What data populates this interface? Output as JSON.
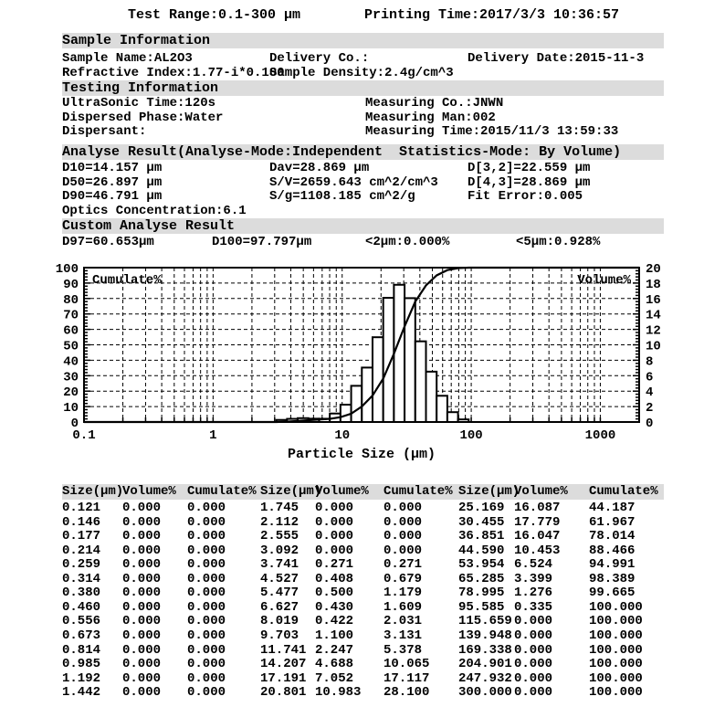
{
  "header": {
    "test_range": "Test Range:0.1-300 μm",
    "printing_time": "Printing Time:2017/3/3 10:36:57"
  },
  "sections": {
    "sample": {
      "title": "Sample Information",
      "rows": [
        [
          "Sample Name:AL2O3",
          "Delivery Co.:",
          "Delivery Date:2015-11-3"
        ],
        [
          "Refractive Index:1.77-i*0.100",
          "Sample Density:2.4g/cm^3"
        ]
      ]
    },
    "testing": {
      "title": "Testing Information",
      "rows": [
        [
          "UltraSonic Time:120s",
          "Measuring Co.:JNWN"
        ],
        [
          "Dispersed Phase:Water",
          "Measuring Man:002"
        ],
        [
          "Dispersant:",
          "Measuring Time:2015/11/3 13:59:33"
        ]
      ]
    },
    "analyse": {
      "title": "Analyse Result(Analyse-Mode:Independent  Statistics-Mode: By Volume)",
      "rows": [
        [
          "D10=14.157 μm",
          "Dav=28.869 μm",
          "D[3,2]=22.559 μm"
        ],
        [
          "D50=26.897 μm",
          "S/V=2659.643 cm^2/cm^3",
          "D[4,3]=28.869 μm"
        ],
        [
          "D90=46.791 μm",
          "S/g=1108.185 cm^2/g",
          "Fit Error:0.005"
        ],
        [
          "Optics Concentration:6.1"
        ]
      ]
    },
    "custom": {
      "title": "Custom Analyse Result",
      "rows": [
        [
          "D97=60.653μm",
          "D100=97.797μm",
          "<2μm:0.000%",
          "<5μm:0.928%"
        ]
      ]
    }
  },
  "chart_data": {
    "type": "bar",
    "title": "",
    "xlabel": "Particle Size (μm)",
    "x_scale": "log",
    "x_min": 0.1,
    "x_max": 2000,
    "x_tick_values": [
      0.1,
      1,
      10,
      100,
      1000
    ],
    "x_tick_labels": [
      "0.1",
      "1",
      "10",
      "100",
      "1000"
    ],
    "left_axis_label": "Cumulate%",
    "left_ylim": [
      0,
      100
    ],
    "left_tick_step": 10,
    "right_axis_label": "Volume%",
    "right_ylim": [
      0,
      20
    ],
    "right_tick_step": 2,
    "grid": "dashed",
    "sizes": [
      0.121,
      0.146,
      0.177,
      0.214,
      0.259,
      0.314,
      0.38,
      0.46,
      0.556,
      0.673,
      0.814,
      0.985,
      1.192,
      1.442,
      1.745,
      2.112,
      2.555,
      3.092,
      3.741,
      4.527,
      5.477,
      6.627,
      8.019,
      9.703,
      11.741,
      14.207,
      17.191,
      20.801,
      25.169,
      30.455,
      36.851,
      44.59,
      53.954,
      65.285,
      78.995,
      95.585,
      115.659,
      139.948,
      169.338,
      204.901,
      247.932,
      300.0
    ],
    "series": [
      {
        "name": "Volume%",
        "plot": "bar",
        "axis": "right",
        "values": [
          0.0,
          0.0,
          0.0,
          0.0,
          0.0,
          0.0,
          0.0,
          0.0,
          0.0,
          0.0,
          0.0,
          0.0,
          0.0,
          0.0,
          0.0,
          0.0,
          0.0,
          0.0,
          0.271,
          0.408,
          0.5,
          0.43,
          0.422,
          1.1,
          2.247,
          4.688,
          7.052,
          10.983,
          16.087,
          17.779,
          16.047,
          10.453,
          6.524,
          3.399,
          1.276,
          0.335,
          0.0,
          0.0,
          0.0,
          0.0,
          0.0,
          0.0
        ]
      },
      {
        "name": "Cumulate%",
        "plot": "line",
        "axis": "left",
        "values": [
          0.0,
          0.0,
          0.0,
          0.0,
          0.0,
          0.0,
          0.0,
          0.0,
          0.0,
          0.0,
          0.0,
          0.0,
          0.0,
          0.0,
          0.0,
          0.0,
          0.0,
          0.0,
          0.271,
          0.679,
          1.179,
          1.609,
          2.031,
          3.131,
          5.378,
          10.065,
          17.117,
          28.1,
          44.187,
          61.967,
          78.014,
          88.466,
          94.991,
          98.389,
          99.665,
          100.0,
          100.0,
          100.0,
          100.0,
          100.0,
          100.0,
          100.0
        ]
      }
    ]
  },
  "table": {
    "headers": [
      "Size(μm)",
      "Volume%",
      "Cumulate%"
    ]
  }
}
